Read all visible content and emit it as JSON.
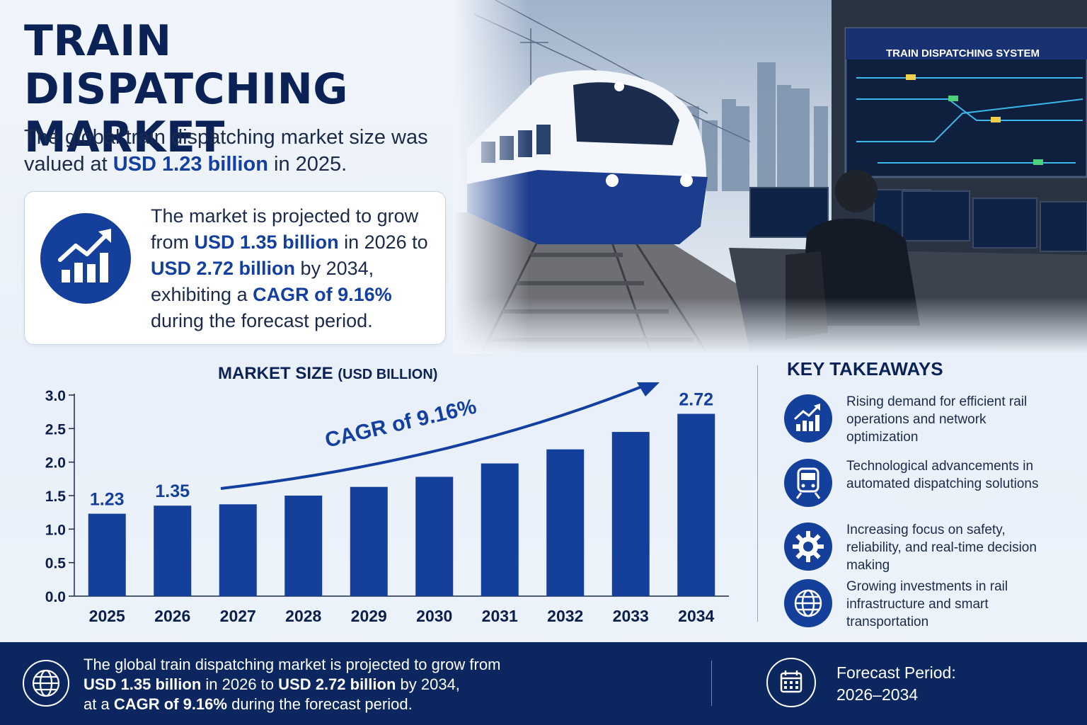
{
  "title": "TRAIN DISPATCHING MARKET",
  "intro": {
    "pre": "The global train dispatching market size was valued at ",
    "value": "USD 1.23 billion",
    "post": " in 2025."
  },
  "projection": {
    "t1": "The market is projected to grow from ",
    "v1": "USD 1.35 billion",
    "t2": " in 2026 to ",
    "v2": "USD 2.72 billion",
    "t3": " by 2034, exhibiting a ",
    "v3": "CAGR of 9.16%",
    "t4": " during the forecast period."
  },
  "hero": {
    "screen_title": "TRAIN DISPATCHING SYSTEM"
  },
  "chart_data": {
    "type": "bar",
    "title": "MARKET SIZE",
    "title_unit": "(USD BILLION)",
    "categories": [
      "2025",
      "2026",
      "2027",
      "2028",
      "2029",
      "2030",
      "2031",
      "2032",
      "2033",
      "2034"
    ],
    "values": [
      1.23,
      1.35,
      1.37,
      1.5,
      1.63,
      1.78,
      1.98,
      2.19,
      2.45,
      2.72
    ],
    "data_labels": {
      "0": "1.23",
      "1": "1.35",
      "9": "2.72"
    },
    "ylim": [
      0,
      3.0
    ],
    "yticks": [
      "0.0",
      "0.5",
      "1.0",
      "1.5",
      "2.0",
      "2.5",
      "3.0"
    ],
    "annotation": "CAGR of 9.16%",
    "grid": false,
    "bar_color": "#143f9a"
  },
  "key_takeaways": {
    "title": "KEY TAKEAWAYS",
    "items": [
      {
        "icon": "growth-chart-icon",
        "text": "Rising demand for efficient rail operations and network optimization"
      },
      {
        "icon": "train-icon",
        "text": "Technological advancements in automated dispatching solutions"
      },
      {
        "icon": "gear-icon",
        "text": "Increasing focus on safety, reliability, and real-time decision making"
      },
      {
        "icon": "globe-icon",
        "text": "Growing investments in rail infrastructure and smart transportation"
      }
    ]
  },
  "footer": {
    "l1": "The global train dispatching market is projected to grow from",
    "v1": "USD 1.35 billion",
    "m1": " in 2026 to ",
    "v2": "USD 2.72 billion",
    "m2": " by 2034,",
    "p3": "at a ",
    "v3": "CAGR of 9.16%",
    "m3": " during the forecast period.",
    "forecast_label": "Forecast Period:",
    "forecast_value": "2026–2034"
  }
}
